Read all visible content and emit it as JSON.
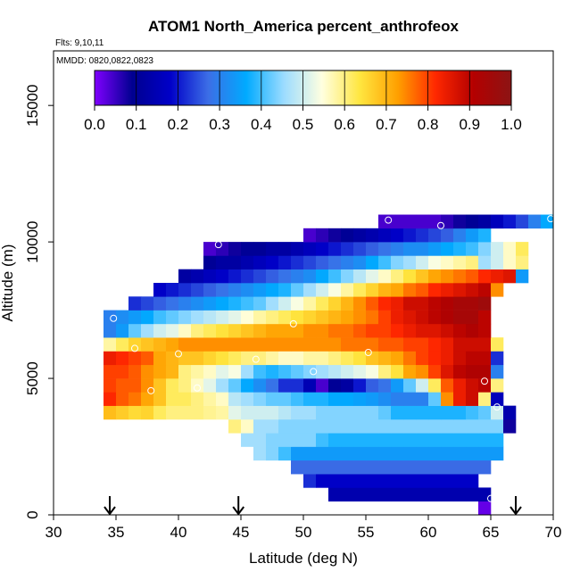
{
  "chart_data": {
    "type": "heatmap",
    "title": "ATOM1 North_America percent_anthrofeox",
    "annotations": {
      "flights": "Flts: 9,10,11",
      "dates": "MMDD: 0820,0822,0823"
    },
    "xlabel": "Latitude (deg N)",
    "ylabel": "Altitude (m)",
    "xlim": [
      30,
      70
    ],
    "ylim": [
      0,
      17000
    ],
    "xticks": [
      "30",
      "35",
      "40",
      "45",
      "50",
      "55",
      "60",
      "65",
      "70"
    ],
    "yticks": [
      "0",
      "5000",
      "10000",
      "15000"
    ],
    "colorbar": {
      "range": [
        0,
        1
      ],
      "ticks": [
        "0.0",
        "0.1",
        "0.2",
        "0.3",
        "0.4",
        "0.5",
        "0.6",
        "0.7",
        "0.8",
        "0.9",
        "1.0"
      ],
      "stops": [
        "#8000ff",
        "#000090",
        "#0000c8",
        "#3c6ee6",
        "#00aaff",
        "#9cdcff",
        "#ffffe0",
        "#ffe640",
        "#ffa000",
        "#ff2800",
        "#b40000",
        "#8c1414"
      ]
    },
    "grid": {
      "lat_start": 34,
      "lat_step": 1,
      "alt_start": 0,
      "alt_step": 500
    },
    "rows": [
      {
        "alt": 500,
        "lat_from": 64,
        "values": [
          0.02
        ]
      },
      {
        "alt": 1000,
        "lat_from": 52,
        "values": [
          0.14,
          0.14,
          0.14,
          0.14,
          0.14,
          0.14,
          0.14,
          0.14,
          0.14,
          0.14,
          0.14,
          0.14,
          0.14
        ]
      },
      {
        "alt": 1500,
        "lat_from": 50,
        "values": [
          0.22,
          0.18,
          0.18,
          0.18,
          0.18,
          0.18,
          0.18,
          0.18,
          0.18,
          0.18,
          0.18,
          0.18,
          0.18,
          0.18
        ]
      },
      {
        "alt": 2000,
        "lat_from": 49,
        "values": [
          0.27,
          0.27,
          0.27,
          0.27,
          0.27,
          0.27,
          0.27,
          0.27,
          0.27,
          0.27,
          0.27,
          0.27,
          0.27,
          0.27,
          0.27,
          0.27
        ]
      },
      {
        "alt": 2500,
        "lat_from": 46,
        "values": [
          0.46,
          0.44,
          0.4,
          0.34,
          0.34,
          0.34,
          0.34,
          0.34,
          0.34,
          0.34,
          0.34,
          0.34,
          0.34,
          0.34,
          0.34,
          0.34,
          0.34,
          0.34,
          0.34,
          0.34
        ]
      },
      {
        "alt": 3000,
        "lat_from": 45,
        "values": [
          0.46,
          0.46,
          0.44,
          0.44,
          0.44,
          0.44,
          0.4,
          0.38,
          0.38,
          0.38,
          0.38,
          0.38,
          0.38,
          0.38,
          0.38,
          0.38,
          0.38,
          0.38,
          0.38,
          0.38,
          0.38
        ]
      },
      {
        "alt": 3500,
        "lat_from": 44,
        "values": [
          0.6,
          0.56,
          0.46,
          0.46,
          0.44,
          0.44,
          0.44,
          0.44,
          0.44,
          0.44,
          0.44,
          0.44,
          0.44,
          0.44,
          0.44,
          0.44,
          0.44,
          0.44,
          0.44,
          0.44,
          0.44,
          0.44,
          0.08
        ]
      },
      {
        "alt": 4000,
        "lat_from": 34,
        "values": [
          0.69,
          0.67,
          0.65,
          0.66,
          0.62,
          0.6,
          0.6,
          0.6,
          0.59,
          0.58,
          0.52,
          0.5,
          0.5,
          0.5,
          0.48,
          0.46,
          0.46,
          0.44,
          0.44,
          0.44,
          0.44,
          0.44,
          0.42,
          0.38,
          0.38,
          0.38,
          0.38,
          0.38,
          0.38,
          0.4,
          0.42,
          0.5,
          0.14
        ]
      },
      {
        "alt": 4500,
        "lat_from": 34,
        "values": [
          0.82,
          0.78,
          0.76,
          0.72,
          0.68,
          0.62,
          0.62,
          0.6,
          0.58,
          0.56,
          0.48,
          0.46,
          0.44,
          0.42,
          0.42,
          0.4,
          0.38,
          0.38,
          0.36,
          0.36,
          0.35,
          0.34,
          0.32,
          0.3,
          0.3,
          0.3,
          0.42,
          0.74,
          0.84,
          0.88,
          0.6,
          0.16
        ]
      },
      {
        "alt": 5000,
        "lat_from": 34,
        "values": [
          0.8,
          0.78,
          0.78,
          0.74,
          0.68,
          0.62,
          0.6,
          0.56,
          0.52,
          0.46,
          0.42,
          0.36,
          0.32,
          0.28,
          0.22,
          0.22,
          0.15,
          0.04,
          0.1,
          0.12,
          0.2,
          0.26,
          0.28,
          0.34,
          0.42,
          0.5,
          0.62,
          0.78,
          0.84,
          0.88,
          0.9,
          0.6
        ]
      },
      {
        "alt": 5500,
        "lat_from": 34,
        "values": [
          0.8,
          0.8,
          0.78,
          0.74,
          0.72,
          0.7,
          0.6,
          0.58,
          0.56,
          0.52,
          0.54,
          0.46,
          0.4,
          0.38,
          0.4,
          0.42,
          0.44,
          0.46,
          0.48,
          0.5,
          0.52,
          0.54,
          0.6,
          0.64,
          0.72,
          0.74,
          0.8,
          0.86,
          0.9,
          0.92,
          0.92,
          0.3
        ]
      },
      {
        "alt": 6000,
        "lat_from": 34,
        "values": [
          0.84,
          0.82,
          0.8,
          0.78,
          0.72,
          0.7,
          0.68,
          0.68,
          0.66,
          0.64,
          0.62,
          0.6,
          0.6,
          0.58,
          0.56,
          0.56,
          0.58,
          0.58,
          0.6,
          0.62,
          0.64,
          0.68,
          0.7,
          0.72,
          0.76,
          0.8,
          0.82,
          0.84,
          0.88,
          0.9,
          0.9,
          0.22
        ]
      },
      {
        "alt": 6500,
        "lat_from": 34,
        "values": [
          0.58,
          0.62,
          0.66,
          0.68,
          0.7,
          0.72,
          0.74,
          0.74,
          0.74,
          0.74,
          0.74,
          0.74,
          0.74,
          0.74,
          0.74,
          0.74,
          0.74,
          0.74,
          0.74,
          0.76,
          0.76,
          0.76,
          0.78,
          0.78,
          0.8,
          0.8,
          0.82,
          0.84,
          0.88,
          0.88,
          0.88,
          0.62
        ]
      },
      {
        "alt": 7000,
        "lat_from": 34,
        "values": [
          0.3,
          0.34,
          0.42,
          0.46,
          0.5,
          0.52,
          0.56,
          0.6,
          0.62,
          0.64,
          0.66,
          0.68,
          0.7,
          0.72,
          0.72,
          0.72,
          0.74,
          0.74,
          0.76,
          0.76,
          0.78,
          0.8,
          0.8,
          0.82,
          0.84,
          0.86,
          0.86,
          0.88,
          0.9,
          0.92,
          0.9
        ]
      },
      {
        "alt": 7500,
        "lat_from": 34,
        "values": [
          0.3,
          0.32,
          0.34,
          0.36,
          0.4,
          0.42,
          0.44,
          0.46,
          0.48,
          0.5,
          0.52,
          0.55,
          0.58,
          0.6,
          0.62,
          0.64,
          0.66,
          0.68,
          0.7,
          0.72,
          0.74,
          0.76,
          0.8,
          0.84,
          0.86,
          0.88,
          0.9,
          0.92,
          0.94,
          0.94,
          0.9
        ]
      },
      {
        "alt": 8000,
        "lat_from": 36,
        "values": [
          0.22,
          0.24,
          0.26,
          0.28,
          0.3,
          0.32,
          0.34,
          0.36,
          0.38,
          0.4,
          0.42,
          0.46,
          0.5,
          0.54,
          0.58,
          0.62,
          0.66,
          0.7,
          0.74,
          0.78,
          0.82,
          0.84,
          0.88,
          0.88,
          0.9,
          0.92,
          0.94,
          0.94,
          0.96
        ]
      },
      {
        "alt": 8500,
        "lat_from": 38,
        "values": [
          0.18,
          0.2,
          0.22,
          0.24,
          0.26,
          0.28,
          0.3,
          0.32,
          0.34,
          0.36,
          0.38,
          0.42,
          0.46,
          0.5,
          0.54,
          0.58,
          0.62,
          0.66,
          0.7,
          0.72,
          0.76,
          0.78,
          0.82,
          0.84,
          0.86,
          0.88,
          0.9,
          0.74
        ]
      },
      {
        "alt": 9000,
        "lat_from": 40,
        "values": [
          0.12,
          0.14,
          0.16,
          0.18,
          0.2,
          0.22,
          0.24,
          0.26,
          0.28,
          0.3,
          0.32,
          0.36,
          0.4,
          0.44,
          0.48,
          0.52,
          0.56,
          0.6,
          0.64,
          0.68,
          0.72,
          0.74,
          0.76,
          0.78,
          0.82,
          0.84,
          0.86,
          0.34
        ]
      },
      {
        "alt": 9500,
        "lat_from": 42,
        "values": [
          0.1,
          0.12,
          0.12,
          0.14,
          0.16,
          0.18,
          0.2,
          0.22,
          0.24,
          0.26,
          0.28,
          0.3,
          0.32,
          0.36,
          0.4,
          0.44,
          0.46,
          0.5,
          0.54,
          0.56,
          0.58,
          0.6,
          0.46,
          0.5,
          0.56,
          0.6
        ]
      },
      {
        "alt": 10000,
        "lat_from": 42,
        "values": [
          0.04,
          0.06,
          0.08,
          0.1,
          0.1,
          0.12,
          0.12,
          0.14,
          0.16,
          0.18,
          0.2,
          0.22,
          0.24,
          0.26,
          0.28,
          0.3,
          0.32,
          0.32,
          0.34,
          0.36,
          0.38,
          0.4,
          0.44,
          0.5,
          0.56,
          0.62
        ]
      },
      {
        "alt": 10500,
        "lat_from": 50,
        "values": [
          0.04,
          0.06,
          0.08,
          0.1,
          0.12,
          0.14,
          0.16,
          0.18,
          0.2,
          0.22,
          0.24,
          0.26,
          0.3,
          0.34,
          0.38
        ]
      },
      {
        "alt": 11000,
        "lat_from": 56,
        "values": [
          0.04,
          0.04,
          0.04,
          0.04,
          0.04,
          0.06,
          0.08,
          0.1,
          0.12,
          0.16,
          0.2,
          0.24,
          0.3,
          0.36
        ]
      }
    ],
    "sample_points": [
      {
        "lat": 34.8,
        "alt": 7200
      },
      {
        "lat": 36.5,
        "alt": 6100
      },
      {
        "lat": 37.8,
        "alt": 4550
      },
      {
        "lat": 40.0,
        "alt": 5900
      },
      {
        "lat": 41.5,
        "alt": 4650
      },
      {
        "lat": 43.2,
        "alt": 9900
      },
      {
        "lat": 46.2,
        "alt": 5700
      },
      {
        "lat": 49.2,
        "alt": 7000
      },
      {
        "lat": 50.8,
        "alt": 5250
      },
      {
        "lat": 55.2,
        "alt": 5950
      },
      {
        "lat": 56.8,
        "alt": 10800
      },
      {
        "lat": 61.0,
        "alt": 10600
      },
      {
        "lat": 64.5,
        "alt": 4900
      },
      {
        "lat": 65.0,
        "alt": 600
      },
      {
        "lat": 65.5,
        "alt": 3950
      },
      {
        "lat": 66.2,
        "alt": 7850
      },
      {
        "lat": 69.8,
        "alt": 10850
      }
    ],
    "arrows": [
      34.5,
      44.8,
      67.0
    ]
  }
}
